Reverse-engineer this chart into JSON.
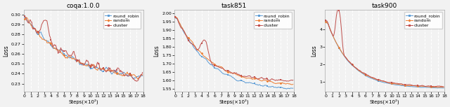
{
  "titles": [
    "coqa:1.0.0",
    "task851",
    "task900"
  ],
  "xlabel": "Steps(×10²)",
  "ylabel": "Loss",
  "legend_labels": [
    "round_robin",
    "random",
    "cluster"
  ],
  "colors": [
    "#5b9bd5",
    "#ed7d31",
    "#c0504d"
  ],
  "markers": [
    "s",
    "D",
    "s"
  ],
  "n_steps": 180,
  "plots": [
    {
      "ylim": [
        0.222,
        0.305
      ],
      "yticks": [
        0.23,
        0.24,
        0.25,
        0.26,
        0.27,
        0.28,
        0.29,
        0.3
      ]
    },
    {
      "ylim": [
        1.535,
        2.02
      ],
      "yticks": [
        1.55,
        1.6,
        1.65,
        1.7,
        1.75,
        1.8,
        1.85,
        1.9,
        1.95,
        2.0
      ]
    },
    {
      "ylim": [
        0.45,
        5.1
      ],
      "yticks": [
        1,
        2,
        3,
        4
      ]
    }
  ],
  "background_color": "#f2f2f2",
  "grid_color": "#ffffff",
  "figsize": [
    6.4,
    1.53
  ],
  "dpi": 100
}
